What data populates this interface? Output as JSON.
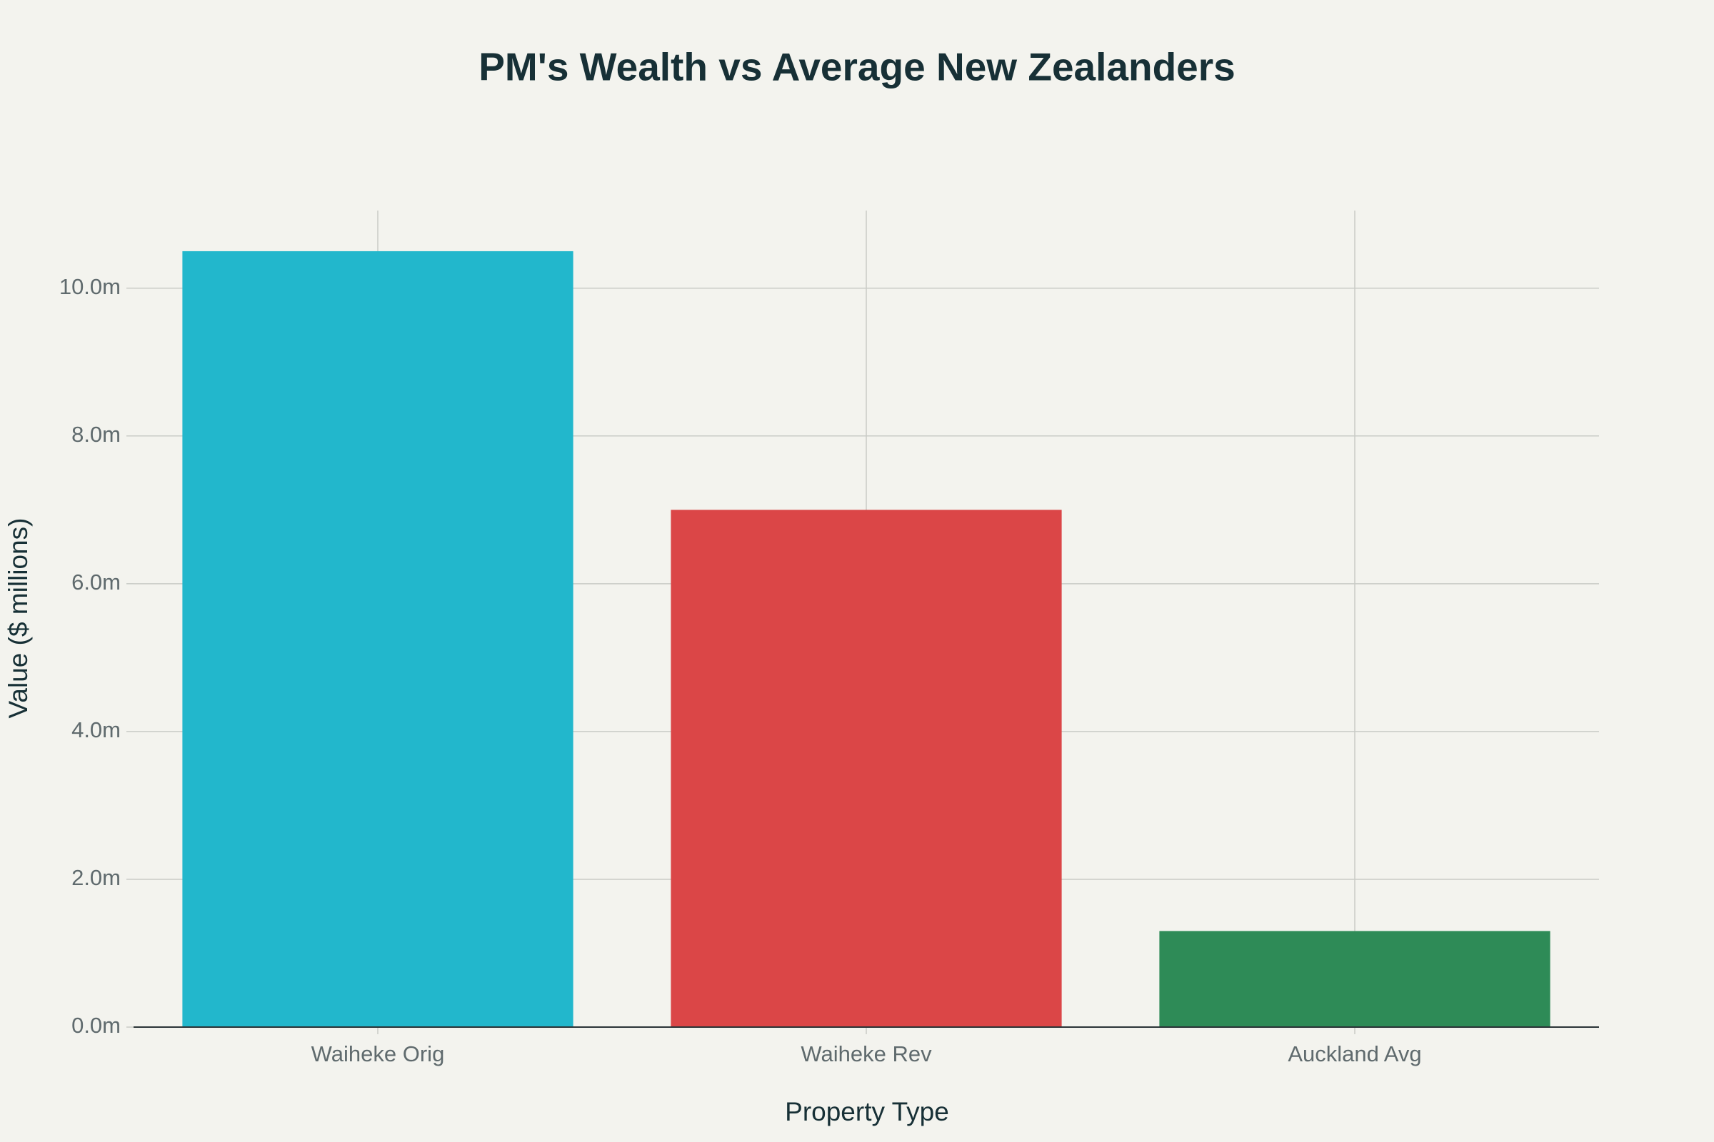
{
  "chart_data": {
    "type": "bar",
    "title": "PM's Wealth vs Average New Zealanders",
    "x_label": "Property Type",
    "y_label": "Value ($ millions)",
    "categories": [
      "Waiheke Orig",
      "Waiheke Rev",
      "Auckland Avg"
    ],
    "values": [
      10.5,
      7.0,
      1.3
    ],
    "colors": [
      "#22b7cc",
      "#db4647",
      "#2e8b57"
    ],
    "ylim": [
      0,
      11.05
    ],
    "yticks": [
      {
        "value": 0,
        "label": "0.0m"
      },
      {
        "value": 2,
        "label": "2.0m"
      },
      {
        "value": 4,
        "label": "4.0m"
      },
      {
        "value": 6,
        "label": "6.0m"
      },
      {
        "value": 8,
        "label": "8.0m"
      },
      {
        "value": 10,
        "label": "10.0m"
      }
    ],
    "grid": true
  }
}
